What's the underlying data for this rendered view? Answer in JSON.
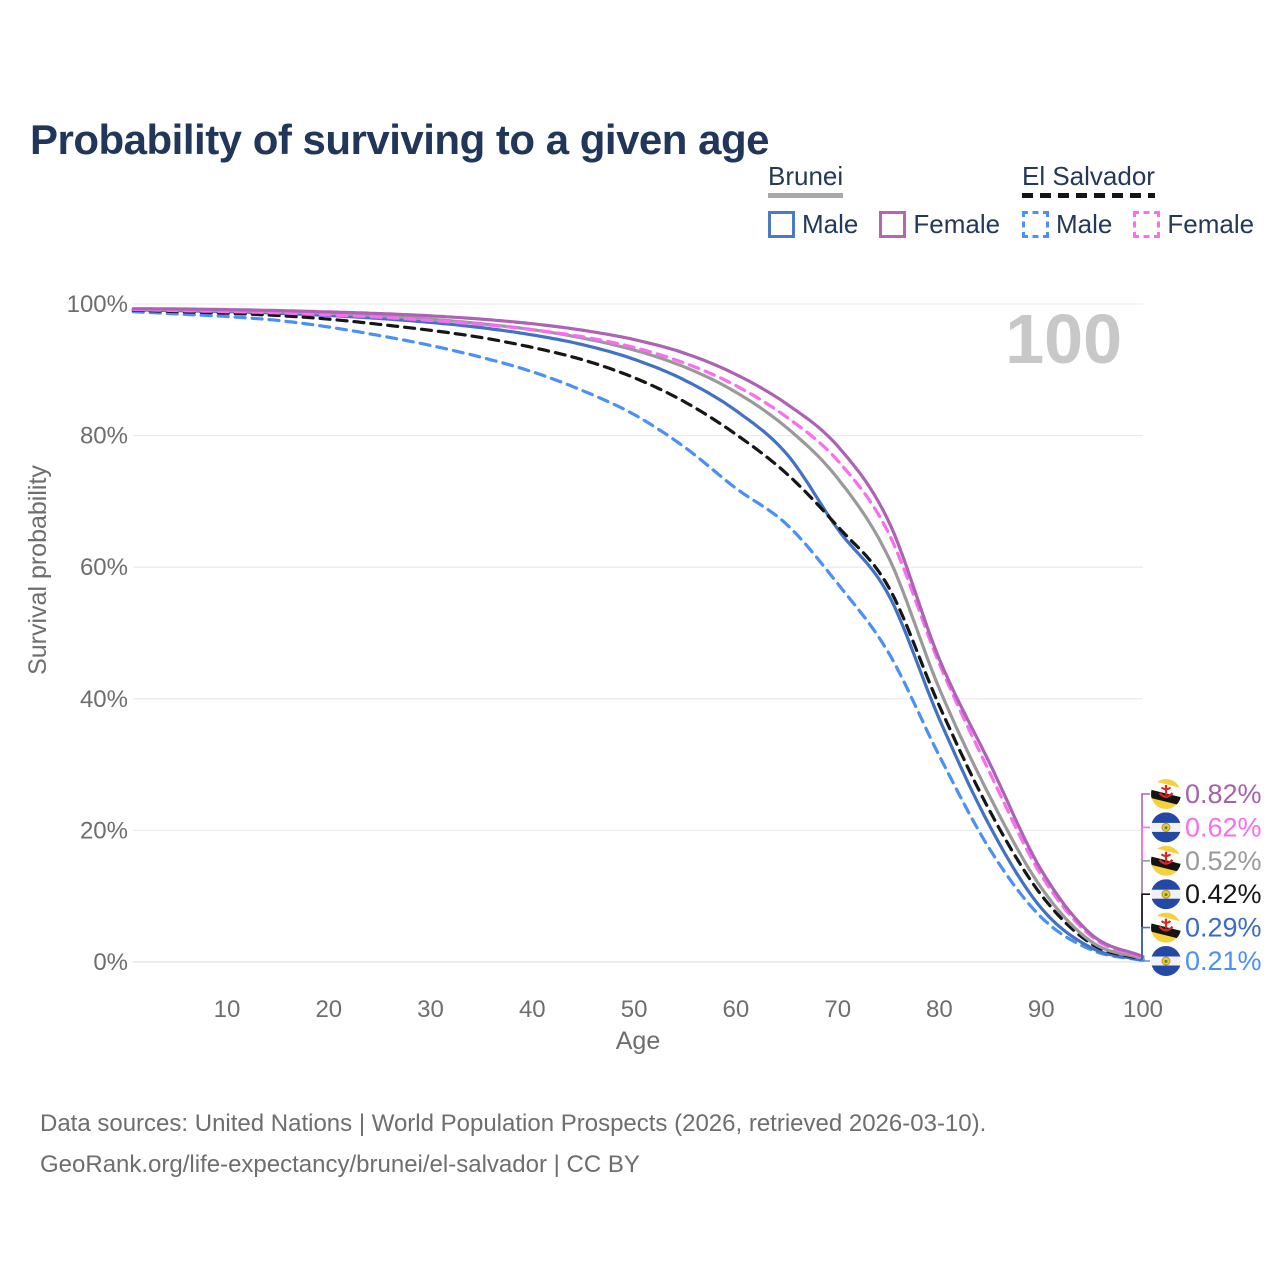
{
  "title": "Probability of surviving to a given age",
  "legend": {
    "groups": [
      {
        "label": "Brunei",
        "underline_style": "solid",
        "underline_color": "#a8a8a8",
        "items": [
          {
            "label": "Male",
            "color": "#4a79c6",
            "dashed": false
          },
          {
            "label": "Female",
            "color": "#b465b4",
            "dashed": false
          }
        ]
      },
      {
        "label": "El Salvador",
        "underline_style": "dashed",
        "underline_color": "#141414",
        "items": [
          {
            "label": "Male",
            "color": "#4a90f6",
            "dashed": true
          },
          {
            "label": "Female",
            "color": "#fa6cf0",
            "dashed": true
          }
        ]
      }
    ]
  },
  "chart_data": {
    "type": "line",
    "title": "Probability of surviving to a given age",
    "xlabel": "Age",
    "ylabel": "Survival probability",
    "xlim": [
      0,
      100
    ],
    "ylim": [
      0,
      100
    ],
    "grid": "horizontal-only",
    "legend_position": "top-right",
    "age_watermark": "100",
    "x_ticks": [
      10,
      20,
      30,
      40,
      50,
      60,
      70,
      80,
      90,
      100
    ],
    "y_ticks": [
      {
        "value": 0,
        "label": "0%"
      },
      {
        "value": 20,
        "label": "20%"
      },
      {
        "value": 40,
        "label": "40%"
      },
      {
        "value": 60,
        "label": "60%"
      },
      {
        "value": 80,
        "label": "80%"
      },
      {
        "value": 100,
        "label": "100%"
      }
    ],
    "ages": [
      0,
      5,
      10,
      15,
      20,
      25,
      30,
      35,
      40,
      45,
      50,
      55,
      60,
      65,
      70,
      75,
      80,
      85,
      90,
      95,
      100
    ],
    "series": [
      {
        "name": "Brunei Female",
        "country": "Brunei",
        "sex": "Female",
        "flag": "brunei",
        "color": "#ad63b5",
        "label_color": "#a762a7",
        "dashed": false,
        "end_label": "0.82%",
        "values": [
          99.3,
          99.25,
          99.15,
          99.0,
          98.8,
          98.55,
          98.2,
          97.7,
          97.0,
          96.0,
          94.6,
          92.5,
          89.3,
          84.8,
          78.4,
          67.0,
          46.0,
          30.0,
          14.0,
          4.1,
          0.82
        ]
      },
      {
        "name": "El Salvador Female",
        "country": "El Salvador",
        "sex": "Female",
        "flag": "elsalvador",
        "color": "#fa6cf0",
        "label_color": "#fa6cf0",
        "dashed": true,
        "end_label": "0.62%",
        "values": [
          99.2,
          99.0,
          98.85,
          98.65,
          98.35,
          98.0,
          97.5,
          96.9,
          96.1,
          95.0,
          93.4,
          91.0,
          87.6,
          82.8,
          76.2,
          65.2,
          45.3,
          28.6,
          13.2,
          3.8,
          0.62
        ]
      },
      {
        "name": "Brunei Total",
        "country": "Brunei",
        "sex": "Both",
        "flag": "brunei",
        "color": "#9a9a9a",
        "label_color": "#9a9a9a",
        "dashed": false,
        "end_label": "0.52%",
        "values": [
          99.2,
          99.1,
          99.0,
          98.8,
          98.6,
          98.2,
          97.7,
          97.0,
          96.1,
          94.8,
          93.0,
          90.4,
          86.6,
          81.2,
          73.5,
          61.5,
          41.5,
          25.0,
          11.3,
          3.0,
          0.52
        ]
      },
      {
        "name": "El Salvador Total",
        "country": "El Salvador",
        "sex": "Both",
        "flag": "elsalvador",
        "color": "#161616",
        "label_color": "#161616",
        "dashed": true,
        "end_label": "0.42%",
        "values": [
          99.1,
          98.85,
          98.6,
          98.25,
          97.7,
          96.9,
          96.0,
          94.9,
          93.4,
          91.5,
          88.8,
          85.1,
          80.2,
          74.2,
          66.2,
          57.0,
          38.9,
          22.8,
          10.2,
          2.7,
          0.42
        ]
      },
      {
        "name": "Brunei Male",
        "country": "Brunei",
        "sex": "Male",
        "flag": "brunei",
        "color": "#4272c4",
        "label_color": "#3a6cc3",
        "dashed": false,
        "end_label": "0.29%",
        "values": [
          99.1,
          99.0,
          98.85,
          98.6,
          98.25,
          97.8,
          97.2,
          96.4,
          95.3,
          93.8,
          91.6,
          88.4,
          83.8,
          77.2,
          65.8,
          55.8,
          36.9,
          20.5,
          8.2,
          2.1,
          0.29
        ]
      },
      {
        "name": "El Salvador Male",
        "country": "El Salvador",
        "sex": "Male",
        "flag": "elsalvador",
        "color": "#4a90f6",
        "label_color": "#4a90f6",
        "dashed": true,
        "end_label": "0.21%",
        "values": [
          98.9,
          98.5,
          98.1,
          97.5,
          96.5,
          95.2,
          93.7,
          91.9,
          89.7,
          86.8,
          83.2,
          78.2,
          72.0,
          66.5,
          57.5,
          47.0,
          31.3,
          17.0,
          6.8,
          1.8,
          0.21
        ]
      }
    ],
    "colors": {
      "grid": "#ececec",
      "zero_line": "#e2e2e2",
      "axis_text": "#6e6e6e",
      "watermark": "#c8c8c8"
    }
  },
  "footer": {
    "line1": "Data sources: United Nations | World Population Prospects (2026, retrieved 2026-03-10).",
    "line2": "GeoRank.org/life-expectancy/brunei/el-salvador | CC BY"
  }
}
